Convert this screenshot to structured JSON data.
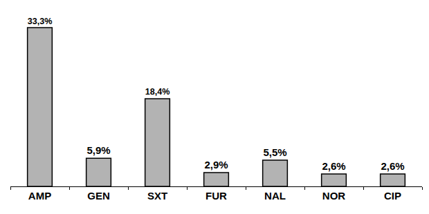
{
  "chart_data": {
    "type": "bar",
    "categories": [
      "AMP",
      "GEN",
      "SXT",
      "FUR",
      "NAL",
      "NOR",
      "CIP"
    ],
    "values": [
      33.3,
      5.9,
      18.4,
      2.9,
      5.5,
      2.6,
      2.6
    ],
    "value_labels": [
      "33,3%",
      "5,9%",
      "18,4%",
      "2,9%",
      "5,5%",
      "2,6%",
      "2,6%"
    ],
    "color": "#b3b3b3",
    "data_labels": true,
    "tick_labels": "x",
    "grid": false
  }
}
